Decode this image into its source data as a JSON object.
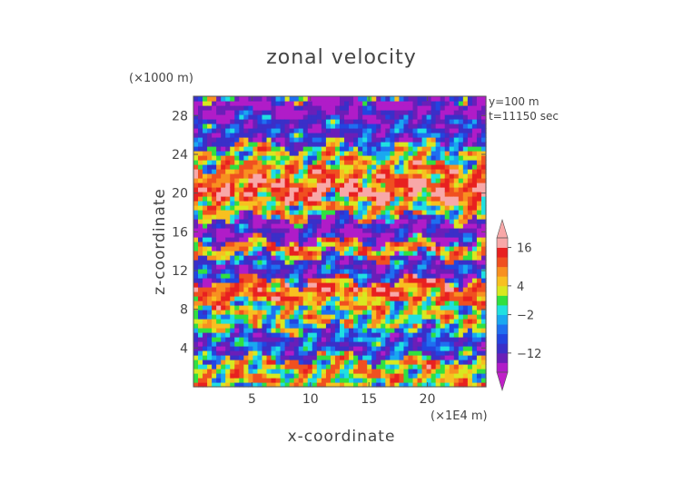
{
  "chart_data": {
    "type": "heatmap",
    "title": "zonal velocity",
    "xlabel": "x-coordinate",
    "ylabel": "z-coordinate",
    "x_unit": "(×1E4 m)",
    "y_unit": "(×1000 m)",
    "annotations": [
      "y=100 m",
      "t=11150 sec"
    ],
    "xlim": [
      0,
      25
    ],
    "ylim": [
      0,
      30
    ],
    "x_ticks": [
      5,
      10,
      15,
      20
    ],
    "y_ticks": [
      4,
      8,
      12,
      16,
      20,
      24,
      28
    ],
    "colorbar": {
      "labels": [
        "16",
        "4",
        "−2",
        "−12"
      ],
      "label_values": [
        16,
        4,
        -2,
        -12
      ],
      "levels": [
        -20,
        -16,
        -12,
        -8,
        -6,
        -4,
        -2,
        0,
        2,
        4,
        6,
        8,
        12,
        16,
        20
      ],
      "colors": [
        "#b01cc8",
        "#6a1fb8",
        "#3a2fc8",
        "#2244e0",
        "#1f6ff0",
        "#1aa8f0",
        "#20e0e0",
        "#30e040",
        "#d8e820",
        "#f8c020",
        "#f89020",
        "#f05020",
        "#e82020",
        "#f8a8a8"
      ],
      "extend": "both"
    },
    "bands": [
      {
        "z": [
          28,
          30
        ],
        "v": -16
      },
      {
        "z": [
          25,
          28
        ],
        "v": -10
      },
      {
        "z": [
          23,
          25
        ],
        "v": 2
      },
      {
        "z": [
          21,
          23
        ],
        "v": 8
      },
      {
        "z": [
          19.5,
          21
        ],
        "v": 14
      },
      {
        "z": [
          17.5,
          19.5
        ],
        "v": 4
      },
      {
        "z": [
          15,
          17.5
        ],
        "v": -14
      },
      {
        "z": [
          13.5,
          15
        ],
        "v": 6
      },
      {
        "z": [
          11,
          13.5
        ],
        "v": -10
      },
      {
        "z": [
          9,
          11
        ],
        "v": 10
      },
      {
        "z": [
          6,
          9
        ],
        "v": 2
      },
      {
        "z": [
          3,
          6
        ],
        "v": -8
      },
      {
        "z": [
          0,
          3
        ],
        "v": 4
      }
    ],
    "grid": false
  }
}
